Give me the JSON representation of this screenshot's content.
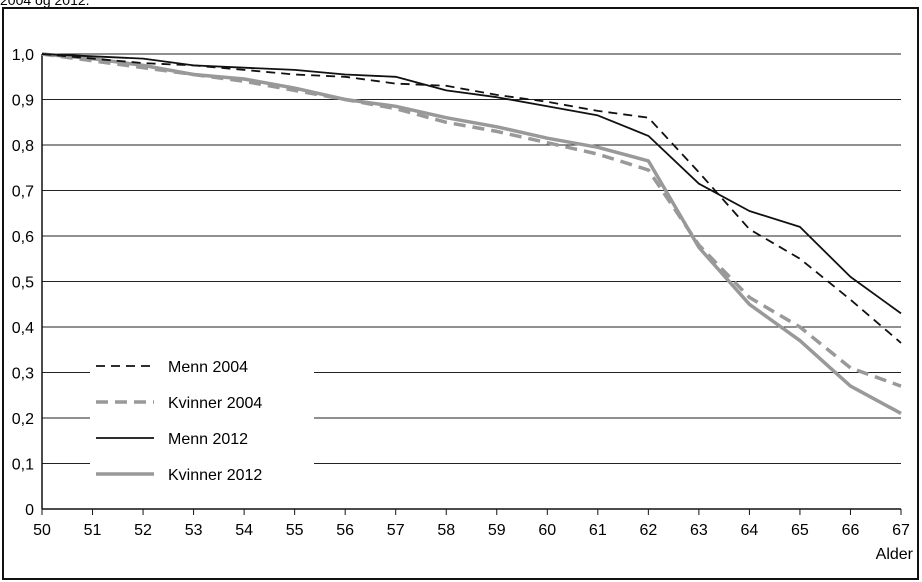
{
  "caption_fragment": "2004 og 2012.",
  "chart_data": {
    "type": "line",
    "title": "",
    "xlabel": "Alder",
    "ylabel": "",
    "x": [
      50,
      51,
      52,
      53,
      54,
      55,
      56,
      57,
      58,
      59,
      60,
      61,
      62,
      63,
      64,
      65,
      66,
      67
    ],
    "xlim": [
      50,
      67
    ],
    "ylim": [
      0,
      1.0
    ],
    "y_ticks": [
      "0",
      "0,1",
      "0,2",
      "0,3",
      "0,4",
      "0,5",
      "0,6",
      "0,7",
      "0,8",
      "0,9",
      "1,0"
    ],
    "x_ticks": [
      "50",
      "51",
      "52",
      "53",
      "54",
      "55",
      "56",
      "57",
      "58",
      "59",
      "60",
      "61",
      "62",
      "63",
      "64",
      "65",
      "66",
      "67"
    ],
    "grid": "horizontal",
    "legend_position": "bottom-left",
    "series": [
      {
        "name": "Menn 2004",
        "color": "#111111",
        "style": "dashed",
        "width": "thin",
        "values": [
          1.0,
          0.99,
          0.98,
          0.975,
          0.965,
          0.955,
          0.95,
          0.935,
          0.93,
          0.91,
          0.895,
          0.875,
          0.86,
          0.74,
          0.615,
          0.55,
          0.46,
          0.365
        ]
      },
      {
        "name": "Kvinner 2004",
        "color": "#999999",
        "style": "dashed",
        "width": "thick",
        "values": [
          1.0,
          0.985,
          0.97,
          0.955,
          0.94,
          0.92,
          0.9,
          0.88,
          0.85,
          0.83,
          0.805,
          0.78,
          0.745,
          0.58,
          0.465,
          0.4,
          0.31,
          0.27
        ]
      },
      {
        "name": "Menn 2012",
        "color": "#111111",
        "style": "solid",
        "width": "thin",
        "values": [
          1.0,
          0.995,
          0.99,
          0.975,
          0.97,
          0.965,
          0.955,
          0.95,
          0.92,
          0.905,
          0.885,
          0.865,
          0.82,
          0.715,
          0.655,
          0.62,
          0.51,
          0.43
        ]
      },
      {
        "name": "Kvinner 2012",
        "color": "#999999",
        "style": "solid",
        "width": "thick",
        "values": [
          1.0,
          0.99,
          0.975,
          0.955,
          0.945,
          0.925,
          0.9,
          0.885,
          0.86,
          0.84,
          0.815,
          0.795,
          0.765,
          0.575,
          0.45,
          0.37,
          0.27,
          0.21
        ]
      }
    ]
  }
}
